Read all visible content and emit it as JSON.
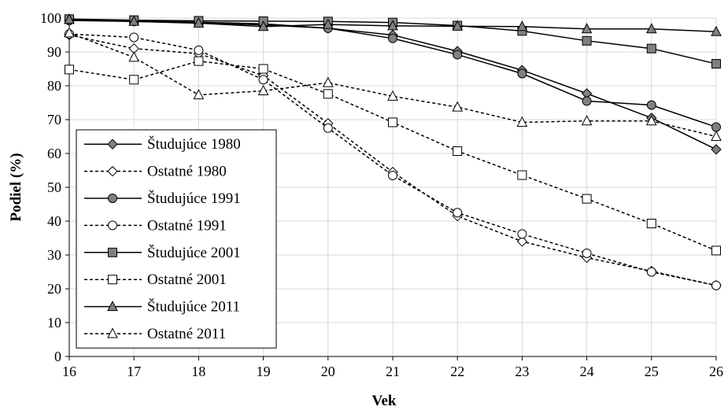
{
  "chart_data": {
    "type": "line",
    "title": "",
    "xlabel": "Vek",
    "ylabel": "Podiel (%)",
    "x": [
      16,
      17,
      18,
      19,
      20,
      21,
      22,
      23,
      24,
      25,
      26
    ],
    "xlim": [
      16,
      26
    ],
    "ylim": [
      0,
      100
    ],
    "yticks": [
      0,
      10,
      20,
      30,
      40,
      50,
      60,
      70,
      80,
      90,
      100
    ],
    "grid": true,
    "legend_position": "lower-left",
    "series": [
      {
        "name": "Študujúce 1980",
        "dash": "solid",
        "marker": "diamond",
        "fill": "#808080",
        "values": [
          99.5,
          99.2,
          98.8,
          98.3,
          97.0,
          95.0,
          90.2,
          84.6,
          77.7,
          70.5,
          61.2
        ]
      },
      {
        "name": "Ostatné 1980",
        "dash": "dashed",
        "marker": "diamond",
        "fill": "#ffffff",
        "values": [
          95.0,
          91.0,
          89.5,
          83.0,
          68.9,
          54.5,
          41.5,
          34.0,
          29.2,
          25.2,
          21.0
        ]
      },
      {
        "name": "Študujúce 1991",
        "dash": "solid",
        "marker": "circle",
        "fill": "#808080",
        "values": [
          99.3,
          99.0,
          98.6,
          98.0,
          97.0,
          94.0,
          89.2,
          83.6,
          75.5,
          74.3,
          67.8
        ]
      },
      {
        "name": "Ostatné 1991",
        "dash": "dashed",
        "marker": "circle",
        "fill": "#ffffff",
        "values": [
          95.3,
          94.3,
          90.5,
          81.8,
          67.5,
          53.5,
          42.5,
          36.2,
          30.5,
          25.0,
          21.0
        ]
      },
      {
        "name": "Študujúce 2001",
        "dash": "solid",
        "marker": "square",
        "fill": "#808080",
        "values": [
          99.7,
          99.4,
          99.2,
          99.1,
          99.0,
          98.7,
          97.8,
          96.2,
          93.3,
          91.0,
          86.5
        ]
      },
      {
        "name": "Ostatné 2001",
        "dash": "dashed",
        "marker": "square",
        "fill": "#ffffff",
        "values": [
          84.8,
          81.8,
          87.3,
          85.0,
          77.6,
          69.2,
          60.7,
          53.6,
          46.6,
          39.3,
          31.3
        ]
      },
      {
        "name": "Študujúce 2011",
        "dash": "solid",
        "marker": "triangle",
        "fill": "#808080",
        "values": [
          99.6,
          99.0,
          98.5,
          97.5,
          98.1,
          97.7,
          97.6,
          97.5,
          96.8,
          96.8,
          96.0
        ]
      },
      {
        "name": "Ostatné 2011",
        "dash": "dashed",
        "marker": "triangle",
        "fill": "#ffffff",
        "values": [
          95.6,
          88.4,
          77.3,
          78.5,
          80.9,
          76.9,
          73.7,
          69.2,
          69.6,
          69.6,
          65.0
        ]
      }
    ],
    "colors": {
      "line": "#000000",
      "marker_solid": "#808080",
      "marker_open": "#ffffff",
      "grid": "#d9d9d9"
    }
  }
}
